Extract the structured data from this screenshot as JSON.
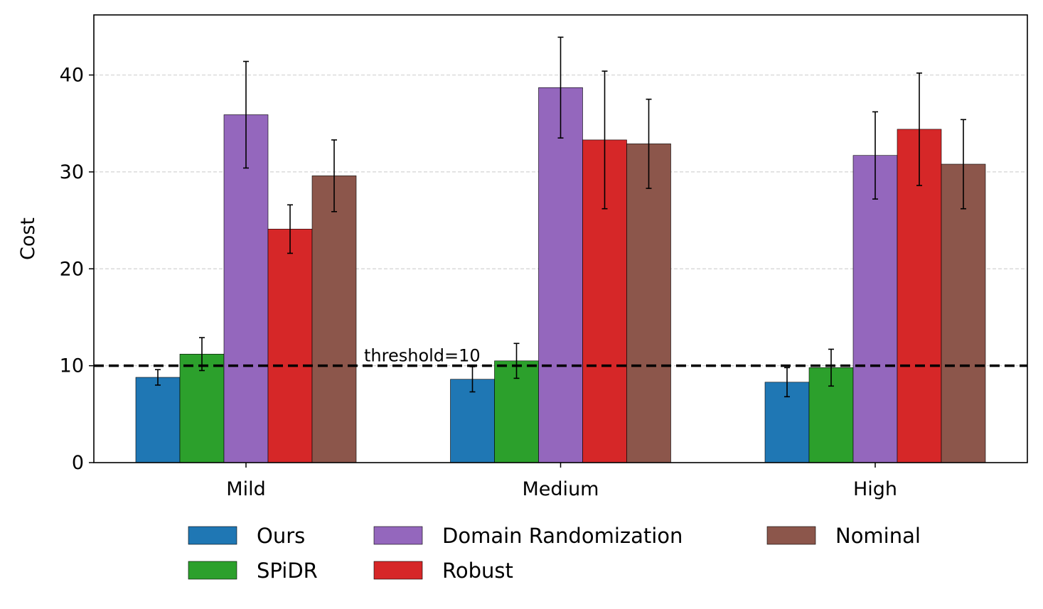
{
  "chart_data": {
    "type": "bar",
    "title": "",
    "xlabel": "",
    "ylabel": "Cost",
    "ylim": [
      0,
      46.2
    ],
    "yticks": [
      0,
      10,
      20,
      30,
      40
    ],
    "grid": "horizontal dashed",
    "legend": "bottom, 3 columns",
    "categories": [
      "Mild",
      "Medium",
      "High"
    ],
    "series": [
      {
        "name": "Ours",
        "color": "#1f77b4",
        "values": [
          8.8,
          8.6,
          8.3
        ],
        "errors": [
          0.8,
          1.3,
          1.5
        ]
      },
      {
        "name": "SPiDR",
        "color": "#2ca02c",
        "values": [
          11.2,
          10.5,
          9.8
        ],
        "errors": [
          1.7,
          1.8,
          1.9
        ]
      },
      {
        "name": "Domain Randomization",
        "color": "#9467bd",
        "values": [
          35.9,
          38.7,
          31.7
        ],
        "errors": [
          5.5,
          5.2,
          4.5
        ]
      },
      {
        "name": "Robust",
        "color": "#d62728",
        "values": [
          24.1,
          33.3,
          34.4
        ],
        "errors": [
          2.5,
          7.1,
          5.8
        ]
      },
      {
        "name": "Nominal",
        "color": "#8c564b",
        "values": [
          29.6,
          32.9,
          30.8
        ],
        "errors": [
          3.7,
          4.6,
          4.6
        ]
      }
    ],
    "threshold": {
      "value": 10,
      "label": "threshold=10",
      "color": "#000000"
    }
  }
}
